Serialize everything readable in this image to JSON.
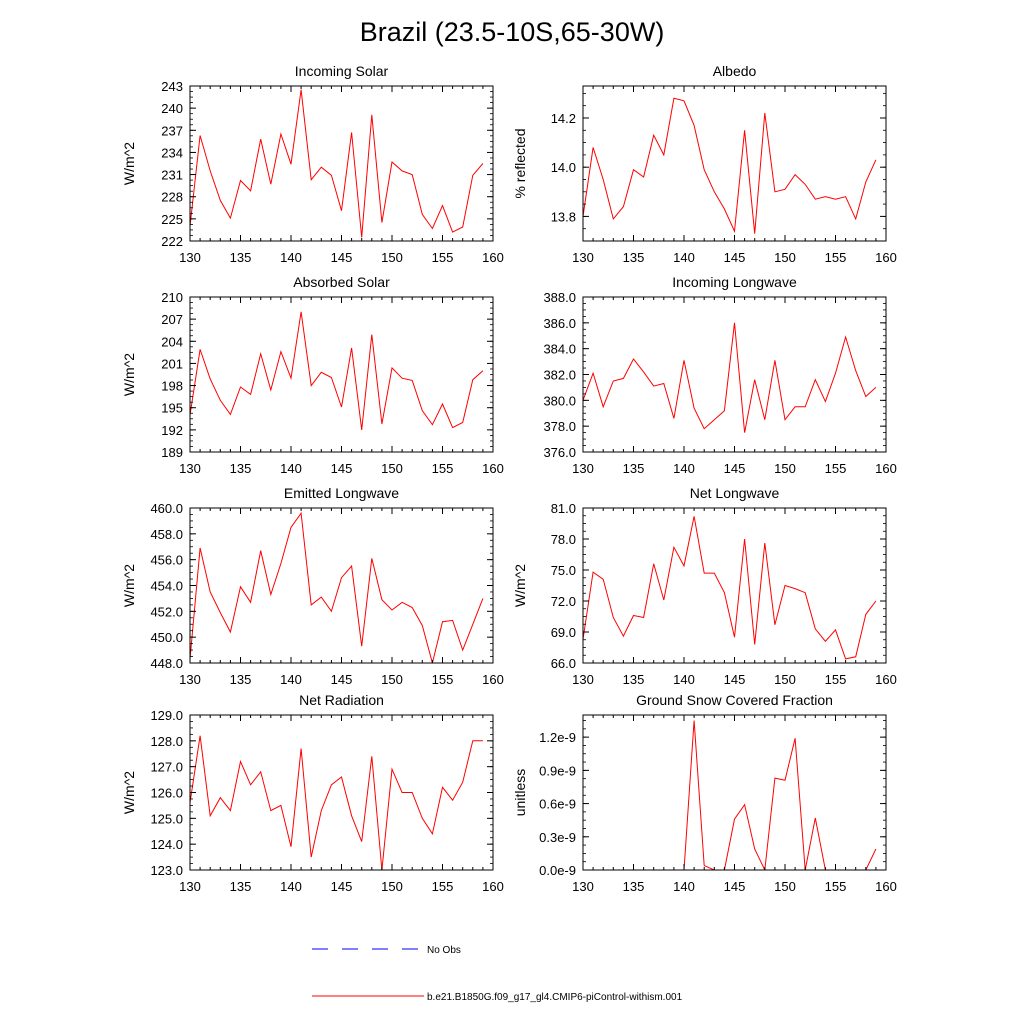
{
  "figure": {
    "title": "Brazil (23.5-10S,65-30W)"
  },
  "legend": [
    {
      "label": "No Obs",
      "color": "#0000ff",
      "style": "dashed"
    },
    {
      "label": "b.e21.B1850G.f09_g17_gl4.CMIP6-piControl-withism.001",
      "color": "#ff0000",
      "style": "solid"
    }
  ],
  "colors": {
    "series": "#ff0000",
    "axes": "#000000"
  },
  "chart_data": [
    {
      "type": "line",
      "title": "Incoming Solar",
      "xlabel": "",
      "ylabel": "W/m^2",
      "xlim": [
        130,
        160
      ],
      "xticks": [
        "130",
        "135",
        "140",
        "145",
        "150",
        "155",
        "160"
      ],
      "ylim": [
        222,
        243
      ],
      "yticks": [
        "222",
        "225",
        "228",
        "231",
        "234",
        "237",
        "240",
        "243"
      ],
      "ytick_values": [
        222,
        225,
        228,
        231,
        234,
        237,
        240,
        243
      ],
      "x": [
        129,
        130,
        131,
        132,
        133,
        134,
        135,
        136,
        137,
        138,
        139,
        140,
        141,
        142,
        143,
        144,
        145,
        146,
        147,
        148,
        149,
        150,
        151,
        152,
        153,
        154,
        155,
        156,
        157,
        158,
        159
      ],
      "values": [
        225.5,
        224.0,
        236.3,
        231.5,
        227.5,
        225.1,
        230.2,
        228.8,
        235.8,
        229.7,
        236.5,
        232.4,
        242.5,
        230.3,
        232.0,
        230.9,
        226.1,
        236.7,
        222.5,
        239.1,
        224.5,
        232.7,
        231.5,
        231.0,
        225.6,
        223.7,
        226.8,
        223.2,
        223.9,
        230.9,
        232.5
      ]
    },
    {
      "type": "line",
      "title": "Albedo",
      "xlabel": "",
      "ylabel": "% reflected",
      "xlim": [
        130,
        160
      ],
      "xticks": [
        "130",
        "135",
        "140",
        "145",
        "150",
        "155",
        "160"
      ],
      "ylim": [
        13.7,
        14.33
      ],
      "yticks": [
        "13.8",
        "14.0",
        "14.2"
      ],
      "ytick_values": [
        13.8,
        14.0,
        14.2
      ],
      "x": [
        129,
        130,
        131,
        132,
        133,
        134,
        135,
        136,
        137,
        138,
        139,
        140,
        141,
        142,
        143,
        144,
        145,
        146,
        147,
        148,
        149,
        150,
        151,
        152,
        153,
        154,
        155,
        156,
        157,
        158,
        159
      ],
      "values": [
        14.0,
        13.8,
        14.08,
        13.95,
        13.79,
        13.84,
        13.99,
        13.96,
        14.13,
        14.05,
        14.28,
        14.27,
        14.17,
        13.99,
        13.9,
        13.83,
        13.74,
        14.15,
        13.73,
        14.22,
        13.9,
        13.91,
        13.97,
        13.93,
        13.87,
        13.88,
        13.87,
        13.88,
        13.79,
        13.94,
        14.03
      ]
    },
    {
      "type": "line",
      "title": "Absorbed Solar",
      "xlabel": "",
      "ylabel": "W/m^2",
      "xlim": [
        130,
        160
      ],
      "xticks": [
        "130",
        "135",
        "140",
        "145",
        "150",
        "155",
        "160"
      ],
      "ylim": [
        189,
        210
      ],
      "yticks": [
        "189",
        "192",
        "195",
        "198",
        "201",
        "204",
        "207",
        "210"
      ],
      "ytick_values": [
        189,
        192,
        195,
        198,
        201,
        204,
        207,
        210
      ],
      "x": [
        129,
        130,
        131,
        132,
        133,
        134,
        135,
        136,
        137,
        138,
        139,
        140,
        141,
        142,
        143,
        144,
        145,
        146,
        147,
        148,
        149,
        150,
        151,
        152,
        153,
        154,
        155,
        156,
        157,
        158,
        159
      ],
      "values": [
        194.5,
        194.0,
        202.9,
        198.9,
        196.0,
        194.1,
        197.8,
        196.8,
        202.3,
        197.4,
        202.6,
        199.0,
        208.0,
        198.0,
        199.8,
        199.1,
        195.1,
        203.1,
        192.0,
        204.9,
        192.8,
        200.4,
        199.0,
        198.7,
        194.6,
        192.7,
        195.5,
        192.3,
        193.0,
        198.8,
        200.0
      ]
    },
    {
      "type": "line",
      "title": "Incoming Longwave",
      "xlabel": "",
      "ylabel": "",
      "xlim": [
        130,
        160
      ],
      "xticks": [
        "130",
        "135",
        "140",
        "145",
        "150",
        "155",
        "160"
      ],
      "ylim": [
        376.0,
        388.0
      ],
      "yticks": [
        "376.0",
        "378.0",
        "380.0",
        "382.0",
        "384.0",
        "386.0",
        "388.0"
      ],
      "ytick_values": [
        376,
        378,
        380,
        382,
        384,
        386,
        388
      ],
      "x": [
        129,
        130,
        131,
        132,
        133,
        134,
        135,
        136,
        137,
        138,
        139,
        140,
        141,
        142,
        143,
        144,
        145,
        146,
        147,
        148,
        149,
        150,
        151,
        152,
        153,
        154,
        155,
        156,
        157,
        158,
        159
      ],
      "values": [
        381.5,
        380.0,
        382.1,
        379.5,
        381.5,
        381.7,
        383.2,
        382.2,
        381.1,
        381.3,
        378.6,
        383.1,
        379.4,
        377.8,
        378.5,
        379.2,
        386.0,
        377.5,
        381.6,
        378.5,
        383.1,
        378.5,
        379.5,
        379.5,
        381.6,
        379.9,
        382.1,
        384.9,
        382.3,
        380.3,
        381.0
      ]
    },
    {
      "type": "line",
      "title": "Emitted Longwave",
      "xlabel": "",
      "ylabel": "W/m^2",
      "xlim": [
        130,
        160
      ],
      "xticks": [
        "130",
        "135",
        "140",
        "145",
        "150",
        "155",
        "160"
      ],
      "ylim": [
        448.0,
        460.0
      ],
      "yticks": [
        "448.0",
        "450.0",
        "452.0",
        "454.0",
        "456.0",
        "458.0",
        "460.0"
      ],
      "ytick_values": [
        448,
        450,
        452,
        454,
        456,
        458,
        460
      ],
      "x": [
        129,
        130,
        131,
        132,
        133,
        134,
        135,
        136,
        137,
        138,
        139,
        140,
        141,
        142,
        143,
        144,
        145,
        146,
        147,
        148,
        149,
        150,
        151,
        152,
        153,
        154,
        155,
        156,
        157,
        158,
        159
      ],
      "values": [
        452.5,
        448.3,
        456.9,
        453.5,
        451.9,
        450.4,
        453.9,
        452.7,
        456.7,
        453.3,
        455.7,
        458.5,
        459.6,
        452.5,
        453.1,
        452.0,
        454.6,
        455.5,
        449.3,
        456.1,
        452.9,
        452.1,
        452.7,
        452.3,
        450.9,
        448.0,
        451.2,
        451.3,
        449.0,
        451.0,
        453.0
      ]
    },
    {
      "type": "line",
      "title": "Net Longwave",
      "xlabel": "",
      "ylabel": "W/m^2",
      "xlim": [
        130,
        160
      ],
      "xticks": [
        "130",
        "135",
        "140",
        "145",
        "150",
        "155",
        "160"
      ],
      "ylim": [
        66.0,
        81.0
      ],
      "yticks": [
        "66.0",
        "69.0",
        "72.0",
        "75.0",
        "78.0",
        "81.0"
      ],
      "ytick_values": [
        66,
        69,
        72,
        75,
        78,
        81
      ],
      "x": [
        129,
        130,
        131,
        132,
        133,
        134,
        135,
        136,
        137,
        138,
        139,
        140,
        141,
        142,
        143,
        144,
        145,
        146,
        147,
        148,
        149,
        150,
        151,
        152,
        153,
        154,
        155,
        156,
        157,
        158,
        159
      ],
      "values": [
        70.0,
        68.3,
        74.8,
        74.1,
        70.4,
        68.6,
        70.6,
        70.4,
        75.6,
        72.1,
        77.2,
        75.4,
        80.2,
        74.7,
        74.7,
        72.8,
        68.5,
        78.0,
        67.8,
        77.6,
        69.7,
        73.5,
        73.2,
        72.8,
        69.3,
        68.1,
        69.2,
        66.4,
        66.6,
        70.7,
        72.0
      ]
    },
    {
      "type": "line",
      "title": "Net Radiation",
      "xlabel": "",
      "ylabel": "W/m^2",
      "xlim": [
        130,
        160
      ],
      "xticks": [
        "130",
        "135",
        "140",
        "145",
        "150",
        "155",
        "160"
      ],
      "ylim": [
        123.0,
        129.0
      ],
      "yticks": [
        "123.0",
        "124.0",
        "125.0",
        "126.0",
        "127.0",
        "128.0",
        "129.0"
      ],
      "ytick_values": [
        123,
        124,
        125,
        126,
        127,
        128,
        129
      ],
      "x": [
        129,
        130,
        131,
        132,
        133,
        134,
        135,
        136,
        137,
        138,
        139,
        140,
        141,
        142,
        143,
        144,
        145,
        146,
        147,
        148,
        149,
        150,
        151,
        152,
        153,
        154,
        155,
        156,
        157,
        158,
        159
      ],
      "values": [
        126.5,
        125.6,
        128.2,
        125.1,
        125.8,
        125.3,
        127.2,
        126.3,
        126.8,
        125.3,
        125.5,
        123.9,
        127.7,
        123.5,
        125.3,
        126.3,
        126.6,
        125.1,
        124.1,
        127.4,
        123.0,
        126.9,
        126.0,
        126.0,
        125.0,
        124.4,
        126.2,
        125.7,
        126.4,
        128.0,
        128.0
      ]
    },
    {
      "type": "line",
      "title": "Ground Snow Covered Fraction",
      "xlabel": "",
      "ylabel": "unitless",
      "xlim": [
        130,
        160
      ],
      "xticks": [
        "130",
        "135",
        "140",
        "145",
        "150",
        "155",
        "160"
      ],
      "ylim": [
        0.0,
        1.4e-09
      ],
      "yticks": [
        "0.0e-9",
        "0.3e-9",
        "0.6e-9",
        "0.9e-9",
        "1.2e-9"
      ],
      "ytick_values": [
        0,
        3e-10,
        6e-10,
        9e-10,
        1.2e-09
      ],
      "x": [
        129,
        130,
        131,
        132,
        133,
        134,
        135,
        136,
        137,
        138,
        139,
        140,
        141,
        142,
        143,
        144,
        145,
        146,
        147,
        148,
        149,
        150,
        151,
        152,
        153,
        154,
        155,
        156,
        157,
        158,
        159
      ],
      "values": [
        0,
        0,
        0,
        0,
        0,
        0,
        0,
        0,
        0,
        0,
        0,
        0,
        1.35e-09,
        4e-11,
        0,
        0,
        4.6e-10,
        5.9e-10,
        1.9e-10,
        0,
        8.3e-10,
        8.1e-10,
        1.19e-09,
        0,
        4.7e-10,
        0,
        0,
        0,
        0,
        0,
        1.9e-10
      ]
    }
  ]
}
